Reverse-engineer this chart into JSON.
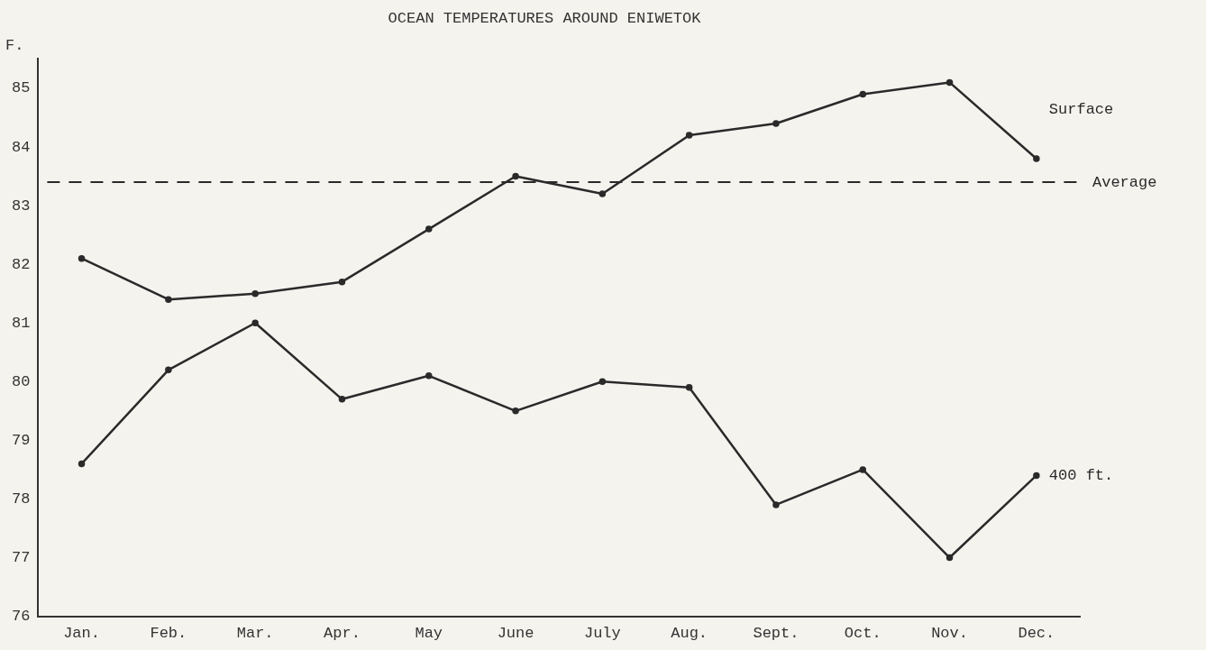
{
  "chart_data": {
    "type": "line",
    "title": "OCEAN TEMPERATURES AROUND ENIWETOK",
    "ylabel": "F.",
    "categories": [
      "Jan.",
      "Feb.",
      "Mar.",
      "Apr.",
      "May",
      "June",
      "July",
      "Aug.",
      "Sept.",
      "Oct.",
      "Nov.",
      "Dec."
    ],
    "series": [
      {
        "name": "Surface",
        "color": "#2a2a2a",
        "values": [
          82.1,
          81.4,
          81.5,
          81.7,
          82.6,
          83.5,
          83.2,
          84.2,
          84.4,
          84.9,
          85.1,
          83.8
        ]
      },
      {
        "name": "400 ft.",
        "color": "#2a2a2a",
        "values": [
          78.6,
          80.2,
          81.0,
          79.7,
          80.1,
          79.5,
          80.0,
          79.9,
          77.9,
          78.5,
          77.0,
          78.4
        ]
      }
    ],
    "ref_lines": [
      {
        "axis": "y",
        "value": 83.4,
        "label": "Average",
        "line_style": "dashed",
        "color": "#2a2a2a"
      }
    ],
    "ylim": [
      76,
      85.5
    ],
    "yticks": [
      76,
      77,
      78,
      79,
      80,
      81,
      82,
      83,
      84,
      85
    ],
    "grid": false,
    "legend": false,
    "marker": "circle",
    "line_style": "solid"
  }
}
